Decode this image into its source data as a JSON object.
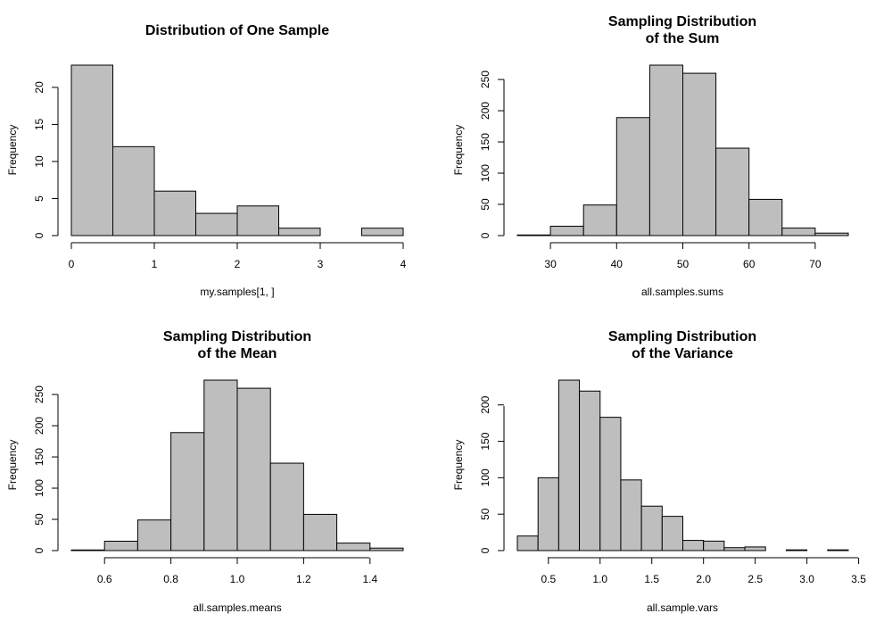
{
  "chart_data": [
    {
      "type": "bar",
      "title": [
        "Distribution of One Sample"
      ],
      "xlabel": "my.samples[1, ]",
      "ylabel": "Frequency",
      "bins": [
        [
          0,
          0.5
        ],
        [
          0.5,
          1
        ],
        [
          1,
          1.5
        ],
        [
          1.5,
          2
        ],
        [
          2,
          2.5
        ],
        [
          2.5,
          3
        ],
        [
          3,
          3.5
        ],
        [
          3.5,
          4
        ]
      ],
      "values": [
        23,
        12,
        6,
        3,
        4,
        1,
        0,
        1
      ],
      "xlim": [
        0,
        4
      ],
      "ylim": [
        0,
        23
      ],
      "xticks": [
        0,
        1,
        2,
        3,
        4
      ],
      "xtick_labels": [
        "0",
        "1",
        "2",
        "3",
        "4"
      ],
      "yticks": [
        0,
        5,
        10,
        15,
        20
      ],
      "ytick_labels": [
        "0",
        "5",
        "10",
        "15",
        "20"
      ]
    },
    {
      "type": "bar",
      "title": [
        "Sampling Distribution",
        "of the Sum"
      ],
      "xlabel": "all.samples.sums",
      "ylabel": "Frequency",
      "bins": [
        [
          25,
          30
        ],
        [
          30,
          35
        ],
        [
          35,
          40
        ],
        [
          40,
          45
        ],
        [
          45,
          50
        ],
        [
          50,
          55
        ],
        [
          55,
          60
        ],
        [
          60,
          65
        ],
        [
          65,
          70
        ],
        [
          70,
          75
        ]
      ],
      "values": [
        1,
        15,
        49,
        189,
        273,
        260,
        140,
        58,
        12,
        4
      ],
      "xlim": [
        25,
        75
      ],
      "ylim": [
        0,
        273
      ],
      "xticks": [
        30,
        40,
        50,
        60,
        70
      ],
      "xtick_labels": [
        "30",
        "40",
        "50",
        "60",
        "70"
      ],
      "yticks": [
        0,
        50,
        100,
        150,
        200,
        250
      ],
      "ytick_labels": [
        "0",
        "50",
        "100",
        "150",
        "200",
        "250"
      ]
    },
    {
      "type": "bar",
      "title": [
        "Sampling Distribution",
        "of the Mean"
      ],
      "xlabel": "all.samples.means",
      "ylabel": "Frequency",
      "bins": [
        [
          0.5,
          0.6
        ],
        [
          0.6,
          0.7
        ],
        [
          0.7,
          0.8
        ],
        [
          0.8,
          0.9
        ],
        [
          0.9,
          1.0
        ],
        [
          1.0,
          1.1
        ],
        [
          1.1,
          1.2
        ],
        [
          1.2,
          1.3
        ],
        [
          1.3,
          1.4
        ],
        [
          1.4,
          1.5
        ]
      ],
      "values": [
        1,
        15,
        49,
        189,
        273,
        260,
        140,
        58,
        12,
        4
      ],
      "xlim": [
        0.5,
        1.5
      ],
      "ylim": [
        0,
        273
      ],
      "xticks": [
        0.6,
        0.8,
        1.0,
        1.2,
        1.4
      ],
      "xtick_labels": [
        "0.6",
        "0.8",
        "1.0",
        "1.2",
        "1.4"
      ],
      "yticks": [
        0,
        50,
        100,
        150,
        200,
        250
      ],
      "ytick_labels": [
        "0",
        "50",
        "100",
        "150",
        "200",
        "250"
      ]
    },
    {
      "type": "bar",
      "title": [
        "Sampling Distribution",
        "of the Variance"
      ],
      "xlabel": "all.sample.vars",
      "ylabel": "Frequency",
      "bins": [
        [
          0.2,
          0.4
        ],
        [
          0.4,
          0.6
        ],
        [
          0.6,
          0.8
        ],
        [
          0.8,
          1.0
        ],
        [
          1.0,
          1.2
        ],
        [
          1.2,
          1.4
        ],
        [
          1.4,
          1.6
        ],
        [
          1.6,
          1.8
        ],
        [
          1.8,
          2.0
        ],
        [
          2.0,
          2.2
        ],
        [
          2.2,
          2.4
        ],
        [
          2.4,
          2.6
        ],
        [
          2.6,
          2.8
        ],
        [
          2.8,
          3.0
        ],
        [
          3.0,
          3.2
        ],
        [
          3.2,
          3.4
        ]
      ],
      "values": [
        20,
        100,
        234,
        219,
        183,
        97,
        61,
        47,
        14,
        13,
        4,
        5,
        0,
        1,
        0,
        1
      ],
      "xlim": [
        0.2,
        3.4
      ],
      "ylim": [
        0,
        234
      ],
      "xticks": [
        0.5,
        1.0,
        1.5,
        2.0,
        2.5,
        3.0,
        3.5
      ],
      "xtick_labels": [
        "0.5",
        "1.0",
        "1.5",
        "2.0",
        "2.5",
        "3.0",
        "3.5"
      ],
      "yticks": [
        0,
        50,
        100,
        150,
        200
      ],
      "ytick_labels": [
        "0",
        "50",
        "100",
        "150",
        "200"
      ]
    }
  ]
}
